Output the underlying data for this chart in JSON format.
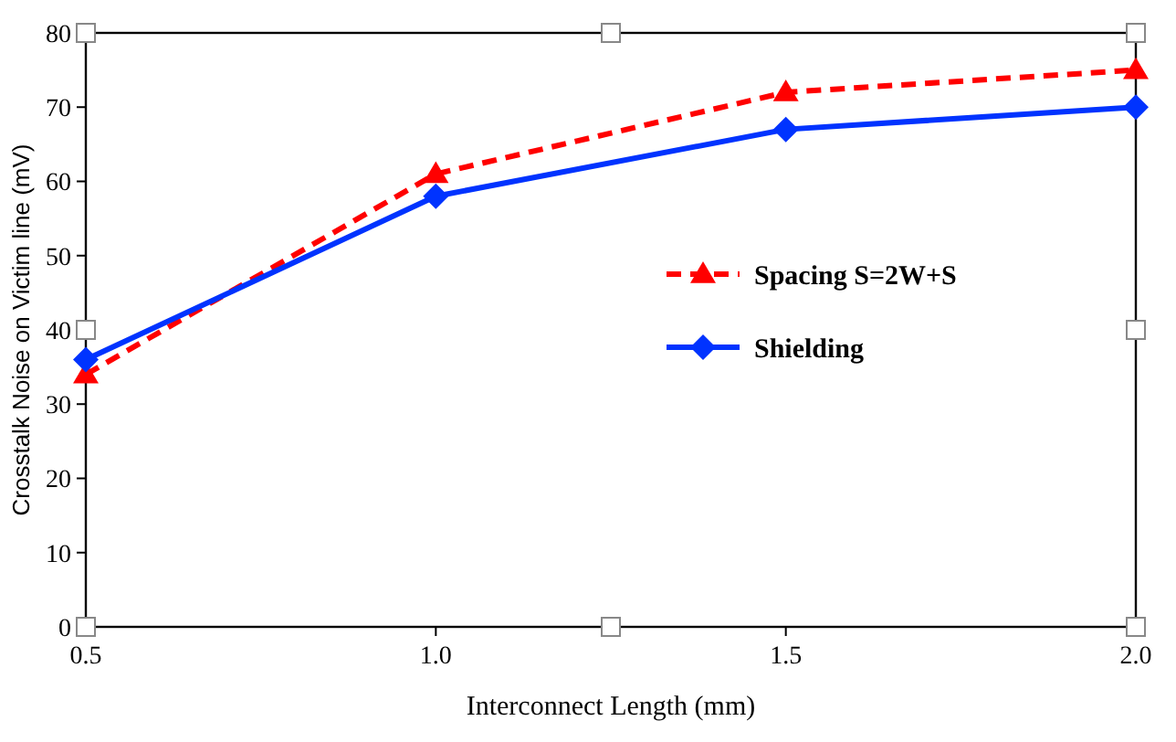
{
  "chart_data": {
    "type": "line",
    "xlabel": "Interconnect Length (mm)",
    "ylabel": "Crosstalk Noise on Victim line (mV)",
    "x": [
      0.5,
      1.0,
      1.5,
      2.0
    ],
    "xlim": [
      0.5,
      2.0
    ],
    "xticks": [
      {
        "value": 0.5,
        "label": "0.5"
      },
      {
        "value": 1.0,
        "label": "1.0"
      },
      {
        "value": 1.5,
        "label": "1.5"
      },
      {
        "value": 2.0,
        "label": "2.0"
      }
    ],
    "ylim": [
      0,
      80
    ],
    "yticks": [
      0,
      10,
      20,
      30,
      40,
      50,
      60,
      70,
      80
    ],
    "grid": false,
    "legend": "right",
    "series": [
      {
        "name": "Spacing S=2W+S",
        "color": "#ff0000",
        "values": [
          34,
          61,
          72,
          75
        ],
        "marker": "triangle",
        "line_style": "dashed"
      },
      {
        "name": "Shielding",
        "color": "#0033ff",
        "values": [
          36,
          58,
          67,
          70
        ],
        "marker": "diamond",
        "line_style": "solid"
      }
    ]
  }
}
